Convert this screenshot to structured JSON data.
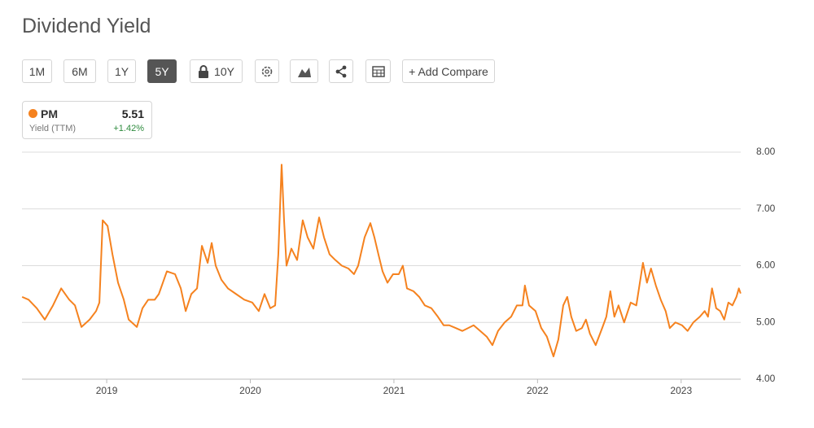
{
  "header": {
    "title": "Dividend Yield"
  },
  "toolbar": {
    "ranges": [
      "1M",
      "6M",
      "1Y",
      "5Y",
      "10Y"
    ],
    "active": "5Y",
    "compare": "+ Add Compare"
  },
  "legend_card": {
    "value": "5.51",
    "label": "Yield (TTM)",
    "change": "+1.42%"
  },
  "chart_data": {
    "type": "line",
    "x": [
      2018.411,
      2018.456,
      2018.513,
      2018.569,
      2018.626,
      2018.683,
      2018.739,
      2018.779,
      2018.824,
      2018.881,
      2018.926,
      2018.949,
      2018.972,
      2019.006,
      2019.04,
      2019.079,
      2019.119,
      2019.153,
      2019.21,
      2019.249,
      2019.289,
      2019.334,
      2019.363,
      2019.391,
      2019.419,
      2019.476,
      2019.516,
      2019.55,
      2019.589,
      2019.629,
      2019.663,
      2019.703,
      2019.731,
      2019.759,
      2019.799,
      2019.844,
      2019.901,
      2019.958,
      2020.014,
      2020.059,
      2020.099,
      2020.139,
      2020.173,
      2020.195,
      2020.218,
      2020.235,
      2020.252,
      2020.286,
      2020.326,
      2020.365,
      2020.399,
      2020.439,
      2020.479,
      2020.513,
      2020.552,
      2020.592,
      2020.637,
      2020.683,
      2020.722,
      2020.751,
      2020.796,
      2020.836,
      2020.864,
      2020.892,
      2020.921,
      2020.955,
      2020.994,
      2021.034,
      2021.062,
      2021.091,
      2021.136,
      2021.176,
      2021.215,
      2021.261,
      2021.306,
      2021.346,
      2021.385,
      2021.431,
      2021.476,
      2021.516,
      2021.555,
      2021.601,
      2021.646,
      2021.686,
      2021.725,
      2021.771,
      2021.816,
      2021.856,
      2021.895,
      2021.912,
      2021.941,
      2021.986,
      2022.026,
      2022.065,
      2022.111,
      2022.145,
      2022.179,
      2022.207,
      2022.235,
      2022.269,
      2022.309,
      2022.337,
      2022.365,
      2022.405,
      2022.45,
      2022.479,
      2022.507,
      2022.535,
      2022.564,
      2022.603,
      2022.649,
      2022.688,
      2022.734,
      2022.762,
      2022.79,
      2022.824,
      2022.858,
      2022.892,
      2022.921,
      2022.96,
      2023.006,
      2023.045,
      2023.085,
      2023.13,
      2023.164,
      2023.187,
      2023.215,
      2023.244,
      2023.272,
      2023.3,
      2023.329,
      2023.357,
      2023.385,
      2023.402,
      2023.414
    ],
    "series": [
      {
        "name": "PM",
        "color": "#f5821f",
        "values": [
          5.45,
          5.4,
          5.25,
          5.05,
          5.3,
          5.6,
          5.4,
          5.3,
          4.92,
          5.05,
          5.2,
          5.35,
          6.8,
          6.7,
          6.2,
          5.7,
          5.4,
          5.05,
          4.92,
          5.25,
          5.4,
          5.4,
          5.5,
          5.7,
          5.9,
          5.85,
          5.6,
          5.2,
          5.5,
          5.6,
          6.35,
          6.05,
          6.4,
          6.0,
          5.75,
          5.6,
          5.5,
          5.4,
          5.35,
          5.2,
          5.5,
          5.25,
          5.3,
          6.2,
          7.78,
          6.8,
          6.0,
          6.3,
          6.1,
          6.8,
          6.5,
          6.3,
          6.85,
          6.5,
          6.2,
          6.1,
          6.0,
          5.95,
          5.85,
          6.0,
          6.5,
          6.75,
          6.5,
          6.2,
          5.9,
          5.7,
          5.85,
          5.85,
          6.0,
          5.6,
          5.55,
          5.45,
          5.3,
          5.25,
          5.1,
          4.95,
          4.95,
          4.9,
          4.85,
          4.9,
          4.95,
          4.85,
          4.75,
          4.6,
          4.85,
          5.0,
          5.1,
          5.3,
          5.3,
          5.65,
          5.3,
          5.2,
          4.9,
          4.75,
          4.4,
          4.7,
          5.3,
          5.45,
          5.1,
          4.85,
          4.9,
          5.05,
          4.8,
          4.6,
          4.9,
          5.1,
          5.55,
          5.1,
          5.3,
          5.0,
          5.35,
          5.3,
          6.05,
          5.7,
          5.95,
          5.65,
          5.4,
          5.2,
          4.9,
          5.0,
          4.95,
          4.85,
          5.0,
          5.1,
          5.2,
          5.1,
          5.6,
          5.25,
          5.2,
          5.05,
          5.35,
          5.3,
          5.45,
          5.6,
          5.51
        ]
      }
    ],
    "xlim": [
      2018.41,
      2023.415
    ],
    "xticks": [
      2019,
      2020,
      2021,
      2022,
      2023
    ],
    "ylim": [
      4,
      8
    ],
    "yticks": [
      {
        "value": 4,
        "label": "4.00"
      },
      {
        "value": 5,
        "label": "5.00"
      },
      {
        "value": 6,
        "label": "6.00"
      },
      {
        "value": 7,
        "label": "7.00"
      },
      {
        "value": 8,
        "label": "8.00"
      }
    ],
    "grid": true
  }
}
